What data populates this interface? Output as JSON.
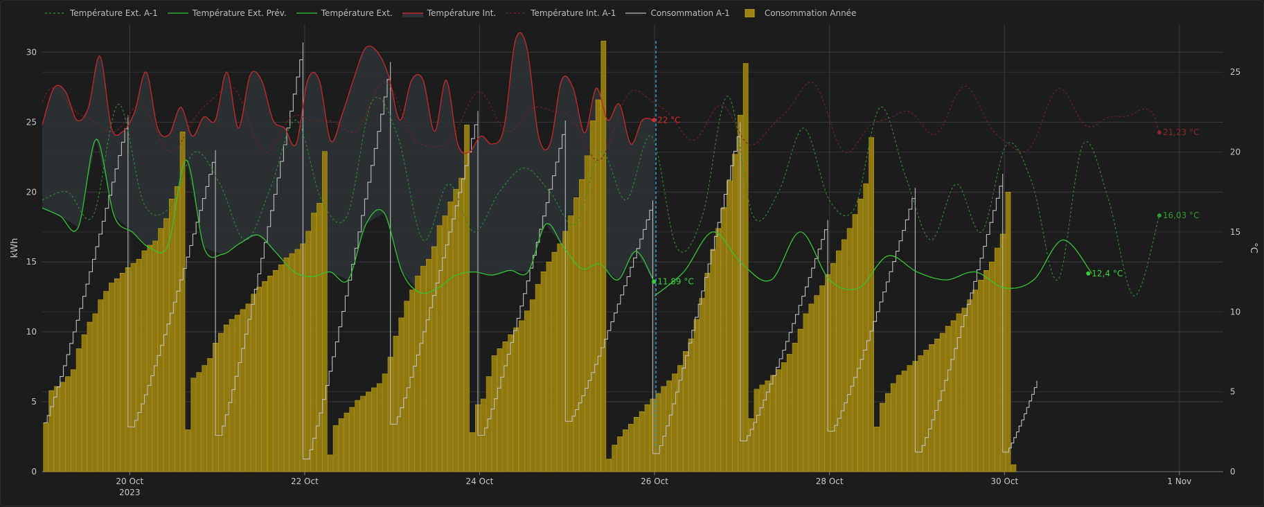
{
  "chart_data": {
    "type": "bar+line",
    "title": "",
    "y_left_label": "kWh",
    "y_right_label": "°C",
    "y_left_ticks": [
      "0",
      "5",
      "10",
      "15",
      "20",
      "25",
      "30"
    ],
    "y_right_ticks": [
      "0",
      "5",
      "10",
      "15",
      "20",
      "25"
    ],
    "y_left_range": [
      0,
      32
    ],
    "y_right_range": [
      0,
      28
    ],
    "x_range": [
      "2023-10-19",
      "2023-11-01T12:00"
    ],
    "x_ticks": [
      {
        "label": "20 Oct",
        "sub": "2023",
        "date": "2023-10-20"
      },
      {
        "label": "22 Oct",
        "sub": "",
        "date": "2023-10-22"
      },
      {
        "label": "24 Oct",
        "sub": "",
        "date": "2023-10-24"
      },
      {
        "label": "26 Oct",
        "sub": "",
        "date": "2023-10-26"
      },
      {
        "label": "28 Oct",
        "sub": "",
        "date": "2023-10-28"
      },
      {
        "label": "30 Oct",
        "sub": "",
        "date": "2023-10-30"
      },
      {
        "label": "1 Nov",
        "sub": "",
        "date": "2023-11-01"
      }
    ],
    "now_marker": "2023-10-26",
    "legend": [
      {
        "name": "Température Ext. A-1",
        "color": "#2e8b2e",
        "style": "dashed"
      },
      {
        "name": "Température Ext. Prév.",
        "color": "#35c335",
        "style": "solid"
      },
      {
        "name": "Température Ext.",
        "color": "#35c335",
        "style": "solid"
      },
      {
        "name": "Température Int.",
        "color": "#c0282a",
        "style": "area"
      },
      {
        "name": "Température Int. A-1",
        "color": "#7a2020",
        "style": "dashed"
      },
      {
        "name": "Consommation A-1",
        "color": "#bdbdbd",
        "style": "solid"
      },
      {
        "name": "Consommation Année",
        "color": "#9c8311",
        "style": "bar"
      }
    ],
    "end_labels": [
      {
        "series": "Température Int.",
        "text": "22 °C",
        "x": "2023-10-25T23:50",
        "y": 22,
        "color": "#d02a2a"
      },
      {
        "series": "Température Ext.",
        "text": "11,89 °C",
        "x": "2023-10-25T23:50",
        "y": 11.89,
        "color": "#35d035"
      },
      {
        "series": "Température Int. A-1",
        "text": "21,23 °C",
        "x": "2023-10-31T18:30",
        "y": 21.23,
        "color": "#8b2424"
      },
      {
        "series": "Température Ext. A-1",
        "text": "16,03 °C",
        "x": "2023-10-31T18:30",
        "y": 16.03,
        "color": "#2f9a2f"
      },
      {
        "series": "Température Ext. Prév.",
        "text": "12,4 °C",
        "x": "2023-10-30T23:00",
        "y": 12.4,
        "color": "#35d035"
      }
    ],
    "series": [
      {
        "name": "Consommation Année",
        "type": "bar",
        "axis": "left",
        "step_hours": 1.5,
        "x_start": "2023-10-19T01:00",
        "daily_profile_note": "sawtooth resetting each day",
        "values": [
          3.5,
          5.8,
          6.1,
          6.4,
          6.8,
          7.3,
          8.8,
          9.8,
          10.7,
          11.3,
          12.3,
          12.9,
          13.5,
          13.8,
          14.2,
          14.6,
          14.9,
          15.2,
          15.8,
          16.2,
          16.5,
          17.4,
          18.1,
          19.5,
          20.4,
          24.3,
          3.0,
          6.7,
          7.1,
          7.6,
          8.1,
          9.2,
          9.9,
          10.5,
          10.9,
          11.2,
          11.6,
          12.0,
          12.7,
          13.2,
          13.6,
          14.0,
          14.4,
          14.8,
          15.3,
          15.6,
          15.9,
          16.3,
          17.2,
          18.5,
          19.2,
          22.9,
          1.2,
          3.3,
          3.8,
          4.2,
          4.6,
          5.1,
          5.4,
          5.7,
          6.0,
          6.3,
          7.0,
          8.2,
          9.7,
          11.0,
          12.2,
          13.0,
          14.0,
          14.7,
          15.2,
          16.1,
          17.6,
          18.3,
          19.3,
          20.2,
          21.0,
          24.8,
          2.8,
          4.8,
          5.2,
          6.8,
          8.3,
          8.8,
          9.3,
          9.8,
          10.3,
          10.8,
          11.5,
          12.3,
          13.4,
          14.3,
          15.0,
          15.7,
          16.3,
          17.2,
          18.3,
          19.6,
          20.9,
          22.6,
          25.1,
          26.6,
          30.8,
          0.9,
          1.9,
          2.5,
          3.0,
          3.4,
          3.9,
          4.3,
          4.8,
          5.2,
          5.6,
          6.1,
          6.5,
          7.0,
          7.6,
          8.6,
          9.5,
          10.9,
          12.4,
          14.2,
          15.9,
          17.4,
          18.9,
          20.8,
          22.7,
          25.5,
          29.2,
          3.8,
          5.9,
          6.2,
          6.5,
          6.9,
          7.3,
          7.8,
          8.4,
          9.2,
          10.2,
          11.3,
          12.0,
          12.6,
          13.3,
          14.1,
          14.9,
          15.8,
          16.6,
          17.4,
          18.4,
          19.5,
          20.6,
          23.9,
          3.2,
          4.9,
          5.6,
          6.3,
          6.9,
          7.2,
          7.6,
          7.9,
          8.3,
          8.7,
          9.1,
          9.5,
          9.9,
          10.4,
          10.8,
          11.3,
          11.7,
          12.3,
          13.0,
          13.7,
          14.4,
          15.0,
          16.0,
          17.0,
          20.0,
          0.5
        ],
        "note": "values estimated, first ~7 days (19–25 Oct)"
      },
      {
        "name": "Consommation A-1",
        "type": "step",
        "axis": "left",
        "x_start": "2023-10-19",
        "x_end": "2023-10-31T18:00",
        "daily_peaks": [
          25.5,
          23.0,
          30.7,
          29.3,
          25.8,
          25.1,
          19.4,
          25.0,
          18.0,
          20.3,
          21.3,
          6.5
        ],
        "daily_lows": [
          3.5,
          3.2,
          2.6,
          0.9,
          3.4,
          2.6,
          3.6,
          1.3,
          2.2,
          2.9,
          1.4,
          1.4
        ]
      },
      {
        "name": "Température Int.",
        "type": "area",
        "axis": "right",
        "x_start": "2023-10-19",
        "x_end": "2023-10-25T23:50",
        "values": [
          21.7,
          24.0,
          23.8,
          22.0,
          22.8,
          26.0,
          21.5,
          21.3,
          22.5,
          25.0,
          21.5,
          21.1,
          22.8,
          21.0,
          22.2,
          22.0,
          25.0,
          21.5,
          24.8,
          24.5,
          22.0,
          21.5,
          20.5,
          24.5,
          24.5,
          20.7,
          22.4,
          24.6,
          26.5,
          26.3,
          24.8,
          22.0,
          24.5,
          24.5,
          21.3,
          24.5,
          20.5,
          20.0,
          21.0,
          20.5,
          21.5,
          27.0,
          26.5,
          21.0,
          20.5,
          24.5,
          24.0,
          21.2,
          24.0,
          22.0,
          23.0,
          20.5,
          22.0,
          22.0
        ]
      },
      {
        "name": "Température Int. A-1",
        "type": "line",
        "axis": "right",
        "style": "dashed",
        "x_start": "2023-10-19",
        "x_end": "2023-10-31T18:30",
        "range_note": "oscillates ~21–24 °C, ends at 21,23 °C"
      },
      {
        "name": "Température Ext.",
        "type": "line",
        "axis": "right",
        "x_start": "2023-10-19",
        "x_end": "2023-10-25T23:50",
        "values": [
          16.5,
          16.0,
          15.3,
          20.8,
          16.0,
          15.0,
          14.0,
          14.2,
          19.5,
          14.0,
          13.6,
          14.3,
          14.8,
          13.7,
          12.5,
          12.2,
          12.5,
          12.0,
          15.5,
          16.2,
          12.5,
          11.2,
          11.5,
          12.3,
          12.5,
          12.3,
          12.6,
          12.5,
          15.5,
          14.0,
          12.7,
          13.0,
          12.0,
          13.8,
          11.89
        ]
      },
      {
        "name": "Température Ext. Prév.",
        "type": "line",
        "axis": "right",
        "x_start": "2023-10-26",
        "x_end": "2023-10-31T00:00",
        "values": [
          11.0,
          12.5,
          15.0,
          13.0,
          12.0,
          15.0,
          12.0,
          11.5,
          13.5,
          12.5,
          12.0,
          12.5,
          11.5,
          12.0,
          14.5,
          12.4
        ]
      },
      {
        "name": "Température Ext. A-1",
        "type": "line",
        "axis": "right",
        "style": "dashed",
        "x_start": "2023-10-19",
        "x_end": "2023-10-31T18:30",
        "values": [
          17.0,
          17.5,
          16.0,
          23.0,
          16.8,
          16.5,
          20.0,
          18.0,
          14.5,
          17.8,
          22.0,
          17.0,
          16.0,
          23.2,
          21.0,
          14.5,
          18.0,
          15.0,
          17.5,
          19.0,
          17.5,
          15.5,
          20.0,
          17.0,
          21.0,
          14.0,
          16.0,
          23.5,
          16.0,
          17.5,
          21.5,
          17.0,
          16.5,
          22.8,
          18.5,
          14.5,
          18.0,
          15.0,
          20.5,
          18.0,
          12.0,
          20.5,
          17.0,
          11.0,
          16.03
        ]
      }
    ]
  }
}
